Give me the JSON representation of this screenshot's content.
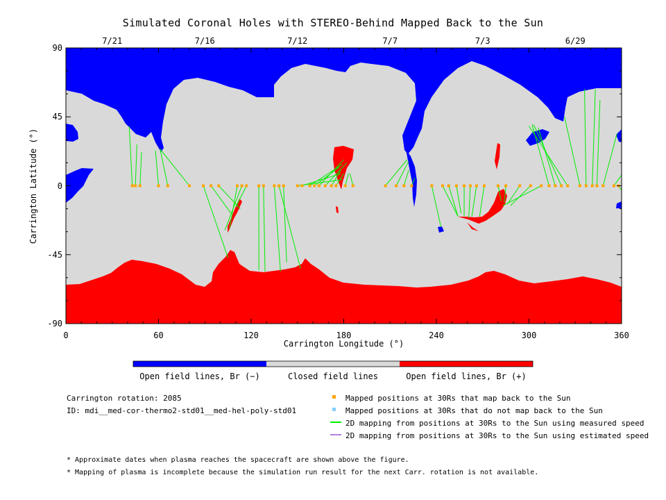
{
  "chart_data": {
    "type": "heatmap",
    "title": "Simulated Coronal Holes with STEREO-Behind Mapped Back to the Sun",
    "xlabel": "Carrington Longitude (°)",
    "ylabel": "Carrington Latitude (°)",
    "xlim": [
      0,
      360
    ],
    "ylim": [
      -90,
      90
    ],
    "x_ticks": [
      "0",
      "60",
      "120",
      "180",
      "240",
      "300",
      "360"
    ],
    "y_ticks": [
      "90",
      "45",
      "0",
      "-45",
      "-90"
    ],
    "top_dates": [
      {
        "label": "7/21",
        "lon": 30
      },
      {
        "label": "7/16",
        "lon": 90
      },
      {
        "label": "7/12",
        "lon": 150
      },
      {
        "label": "7/7",
        "lon": 210
      },
      {
        "label": "7/3",
        "lon": 270
      },
      {
        "label": "6/29",
        "lon": 330
      }
    ],
    "colorbar": [
      {
        "label": "Open field lines, Br (−)",
        "color": "#0000ff"
      },
      {
        "label": "Closed field lines",
        "color": "#d9d9d9"
      },
      {
        "label": "Open field lines, Br (+)",
        "color": "#ff0000"
      }
    ],
    "mapped_points": [
      {
        "lon": 43,
        "target": [
          41,
          39
        ]
      },
      {
        "lon": 45,
        "target": [
          46,
          27
        ]
      },
      {
        "lon": 48,
        "target": [
          49,
          22
        ]
      },
      {
        "lon": 60,
        "target": [
          58,
          23
        ]
      },
      {
        "lon": 66,
        "target": [
          61,
          24
        ]
      },
      {
        "lon": 80,
        "target": [
          61,
          24
        ]
      },
      {
        "lon": 89,
        "target": [
          105,
          -47
        ]
      },
      {
        "lon": 94,
        "target": [
          107,
          -18
        ]
      },
      {
        "lon": 99,
        "target": [
          113,
          -15
        ]
      },
      {
        "lon": 111,
        "target": [
          106,
          -28
        ]
      },
      {
        "lon": 114,
        "target": [
          103,
          -29
        ]
      },
      {
        "lon": 117,
        "target": [
          110,
          -14
        ]
      },
      {
        "lon": 125,
        "target": [
          125,
          -55
        ]
      },
      {
        "lon": 128,
        "target": [
          129,
          -56
        ]
      },
      {
        "lon": 135,
        "target": [
          139,
          -56
        ]
      },
      {
        "lon": 138,
        "target": [
          152,
          -54
        ]
      },
      {
        "lon": 141,
        "target": [
          143,
          -50
        ]
      },
      {
        "lon": 150,
        "target": [
          179,
          4
        ]
      },
      {
        "lon": 153,
        "target": [
          178,
          8
        ]
      },
      {
        "lon": 158,
        "target": [
          179,
          14
        ]
      },
      {
        "lon": 161,
        "target": [
          177,
          12
        ]
      },
      {
        "lon": 164,
        "target": [
          180,
          17
        ]
      },
      {
        "lon": 168,
        "target": [
          182,
          15
        ]
      },
      {
        "lon": 172,
        "target": [
          178,
          10
        ]
      },
      {
        "lon": 175,
        "target": [
          180,
          8
        ]
      },
      {
        "lon": 181,
        "target": [
          183,
          8
        ]
      },
      {
        "lon": 186,
        "target": [
          184,
          8
        ]
      },
      {
        "lon": 207,
        "target": [
          221,
          17
        ]
      },
      {
        "lon": 214,
        "target": [
          222,
          16
        ]
      },
      {
        "lon": 219,
        "target": [
          222,
          10
        ]
      },
      {
        "lon": 224,
        "target": [
          226,
          5
        ]
      },
      {
        "lon": 237,
        "target": [
          243,
          -27
        ]
      },
      {
        "lon": 244,
        "target": [
          254,
          -20
        ]
      },
      {
        "lon": 248,
        "target": [
          254,
          -20
        ]
      },
      {
        "lon": 253,
        "target": [
          256,
          -18
        ]
      },
      {
        "lon": 258,
        "target": [
          258,
          -20
        ]
      },
      {
        "lon": 262,
        "target": [
          261,
          -21
        ]
      },
      {
        "lon": 266,
        "target": [
          263,
          -20
        ]
      },
      {
        "lon": 271,
        "target": [
          268,
          -20
        ]
      },
      {
        "lon": 280,
        "target": [
          282,
          -10
        ]
      },
      {
        "lon": 285,
        "target": [
          284,
          -11
        ]
      },
      {
        "lon": 294,
        "target": [
          286,
          -12
        ]
      },
      {
        "lon": 301,
        "target": [
          288,
          -13
        ]
      },
      {
        "lon": 308,
        "target": [
          283,
          -13
        ]
      },
      {
        "lon": 313,
        "target": [
          302,
          40
        ]
      },
      {
        "lon": 317,
        "target": [
          306,
          38
        ]
      },
      {
        "lon": 321,
        "target": [
          303,
          40
        ]
      },
      {
        "lon": 325,
        "target": [
          300,
          39
        ]
      },
      {
        "lon": 333,
        "target": [
          323,
          45
        ]
      },
      {
        "lon": 337,
        "target": [
          336,
          63
        ]
      },
      {
        "lon": 341,
        "target": [
          343,
          63
        ]
      },
      {
        "lon": 344,
        "target": [
          346,
          56
        ]
      },
      {
        "lon": 348,
        "target": [
          357,
          34
        ]
      },
      {
        "lon": 355,
        "target": [
          360,
          7
        ]
      },
      {
        "lon": 358,
        "target": [
          360,
          -3
        ]
      }
    ]
  },
  "colorbar_labels": {
    "neg": "Open field lines, Br (−)",
    "closed": "Closed field lines",
    "pos": "Open field lines, Br (+)"
  },
  "info": {
    "rotation": "Carrington rotation: 2085",
    "id": "ID: mdi__med-cor-thermo2-std01__med-hel-poly-std01"
  },
  "legend": {
    "mapped": "Mapped positions at 30Rs that map back to the Sun",
    "unmapped": "Mapped positions at 30Rs that do not map back to the Sun",
    "measured": "2D mapping from positions at 30Rs to the Sun using measured speed",
    "estimated": "2D mapping from positions at 30Rs to the Sun using estimated speed",
    "colors": {
      "mapped": "#ffa500",
      "unmapped": "#87cefa",
      "measured": "#00ee00",
      "estimated": "#b57edc"
    }
  },
  "notes": {
    "n1": "* Approximate dates when plasma reaches the spacecraft are shown above the figure.",
    "n2": "* Mapping of plasma is incomplete because the simulation run result for the next Carr. rotation is not available."
  }
}
